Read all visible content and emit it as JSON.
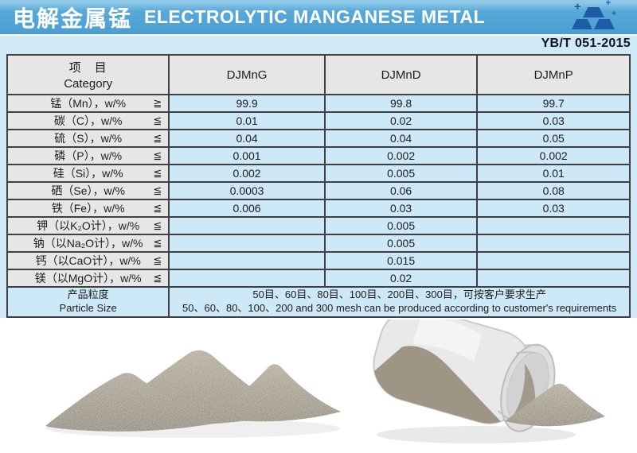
{
  "header": {
    "title_cn": "电解金属锰",
    "title_en": "ELECTROLYTIC MANGANESE METAL",
    "standard": "YB/T 051-2015"
  },
  "table": {
    "category_cn": "项　目",
    "category_en": "Category",
    "columns": [
      "DJMnG",
      "DJMnD",
      "DJMnP"
    ],
    "rows": [
      {
        "label": "锰（Mn），w/%",
        "op": "≧",
        "values": [
          "99.9",
          "99.8",
          "99.7"
        ]
      },
      {
        "label": "碳（C），w/%",
        "op": "≦",
        "values": [
          "0.01",
          "0.02",
          "0.03"
        ]
      },
      {
        "label": "硫（S），w/%",
        "op": "≦",
        "values": [
          "0.04",
          "0.04",
          "0.05"
        ]
      },
      {
        "label": "磷（P），w/%",
        "op": "≦",
        "values": [
          "0.001",
          "0.002",
          "0.002"
        ]
      },
      {
        "label": "硅（Si），w/%",
        "op": "≦",
        "values": [
          "0.002",
          "0.005",
          "0.01"
        ]
      },
      {
        "label": "硒（Se），w/%",
        "op": "≦",
        "values": [
          "0.0003",
          "0.06",
          "0.08"
        ]
      },
      {
        "label": "铁（Fe），w/%",
        "op": "≦",
        "values": [
          "0.006",
          "0.03",
          "0.03"
        ]
      },
      {
        "label": "钾（以K₂O计），w/%",
        "op": "≦",
        "values": [
          "",
          "0.005",
          ""
        ]
      },
      {
        "label": "钠（以Na₂O计），w/%",
        "op": "≦",
        "values": [
          "",
          "0.005",
          ""
        ]
      },
      {
        "label": "钙（以CaO计），w/%",
        "op": "≦",
        "values": [
          "",
          "0.015",
          ""
        ]
      },
      {
        "label": "镁（以MgO计），w/%",
        "op": "≦",
        "values": [
          "",
          "0.02",
          ""
        ]
      }
    ],
    "particle": {
      "label_cn": "产品粒度",
      "label_en": "Particle Size",
      "line_cn": "50目、60目、80目、100目、200目、300目，可按客户要求生产",
      "line_en": "50、60、80、100、200 and 300 mesh can be produced according to customer's requirements"
    }
  },
  "colors": {
    "banner_blue": "#55a7d7",
    "panel_blue": "#cfe9f7",
    "cell_blue": "#cde8f6",
    "cell_gray": "#e6e6e6",
    "border": "#404040",
    "ingot_blue": "#1d5da5"
  }
}
